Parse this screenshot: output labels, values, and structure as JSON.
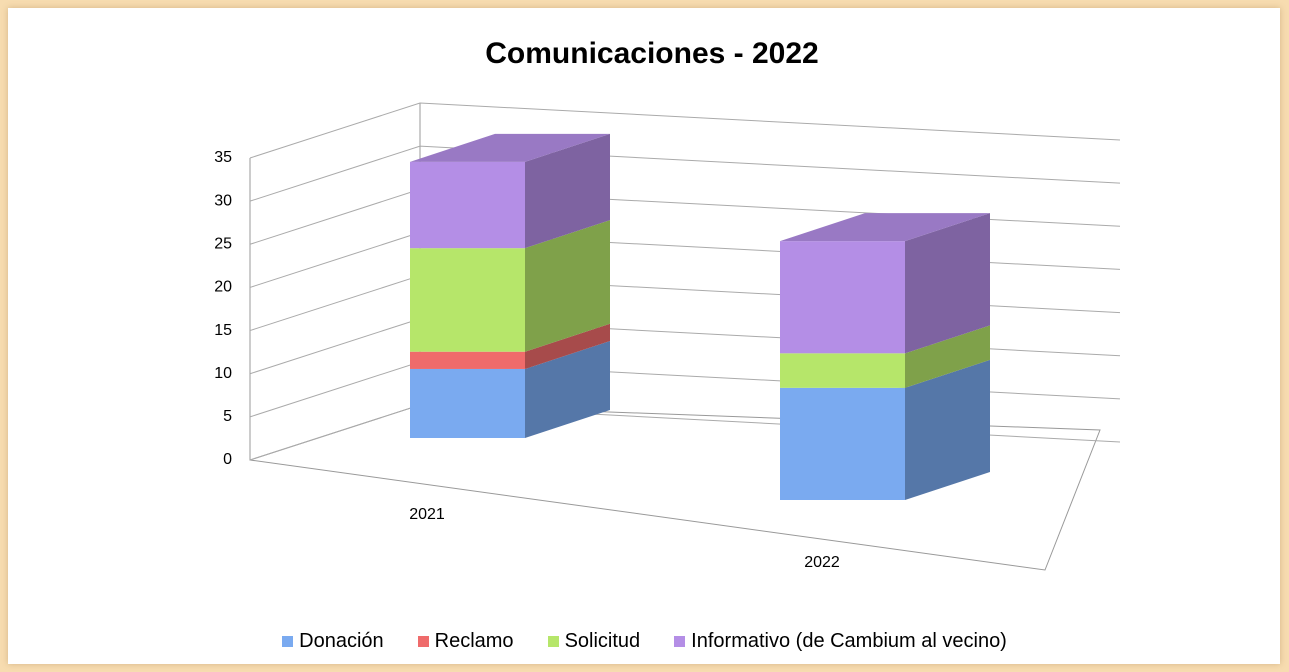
{
  "chart_data": {
    "type": "bar3d_stacked",
    "title": "Comunicaciones - 2022",
    "categories": [
      "2021",
      "2022"
    ],
    "series": [
      {
        "name": "Donación",
        "color": "#7aaaf0",
        "values": [
          8,
          13
        ]
      },
      {
        "name": "Reclamo",
        "color": "#ef6b6b",
        "values": [
          2,
          0
        ]
      },
      {
        "name": "Solicitud",
        "color": "#b6e66a",
        "values": [
          12,
          4
        ]
      },
      {
        "name": "Informativo (de Cambium al vecino)",
        "color": "#b48ee6",
        "values": [
          10,
          13
        ]
      }
    ],
    "ylim": [
      0,
      35
    ],
    "yticks": [
      0,
      5,
      10,
      15,
      20,
      25,
      30,
      35
    ],
    "grid": true
  }
}
